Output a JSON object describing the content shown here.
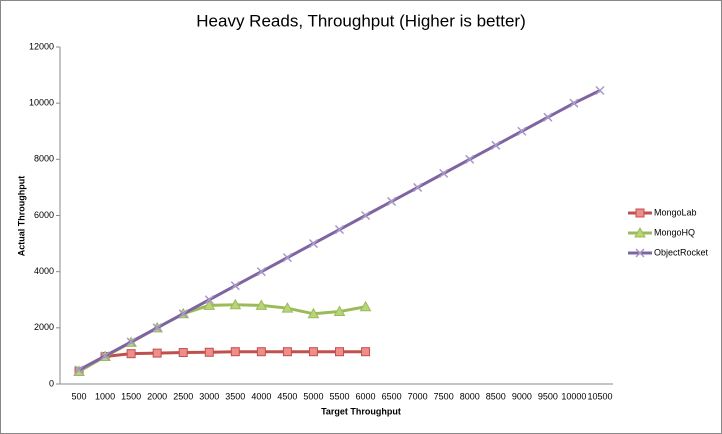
{
  "chart_data": {
    "type": "line",
    "title": "Heavy Reads, Throughput (Higher is better)",
    "x_label": "Target Throughput",
    "y_label": "Actual Throughput",
    "categories": [
      "500",
      "1000",
      "1500",
      "2000",
      "2500",
      "3000",
      "3500",
      "4000",
      "4500",
      "5000",
      "5500",
      "6000",
      "6500",
      "7000",
      "7500",
      "8000",
      "8500",
      "9000",
      "9500",
      "10000",
      "10500"
    ],
    "series": [
      {
        "name": "MongoLab",
        "color": "#c0504d",
        "marker": "square",
        "values": [
          450,
          980,
          1080,
          1100,
          1120,
          1130,
          1150,
          1150,
          1150,
          1150,
          1150,
          1150,
          null,
          null,
          null,
          null,
          null,
          null,
          null,
          null,
          null
        ]
      },
      {
        "name": "MongoHQ",
        "color": "#9bbb59",
        "marker": "triangle",
        "values": [
          450,
          980,
          1480,
          2000,
          2500,
          2800,
          2820,
          2800,
          2700,
          2500,
          2580,
          2750,
          null,
          null,
          null,
          null,
          null,
          null,
          null,
          null,
          null
        ]
      },
      {
        "name": "ObjectRocket",
        "color": "#8064a2",
        "marker": "x",
        "values": [
          500,
          1000,
          1500,
          2000,
          2500,
          3000,
          3500,
          4000,
          4500,
          5000,
          5500,
          6000,
          6500,
          7000,
          7500,
          8000,
          8500,
          9000,
          9500,
          10000,
          10450
        ]
      }
    ],
    "ylim": [
      0,
      12000
    ],
    "yticks": [
      0,
      2000,
      4000,
      6000,
      8000,
      10000,
      12000
    ],
    "legend": "right"
  }
}
